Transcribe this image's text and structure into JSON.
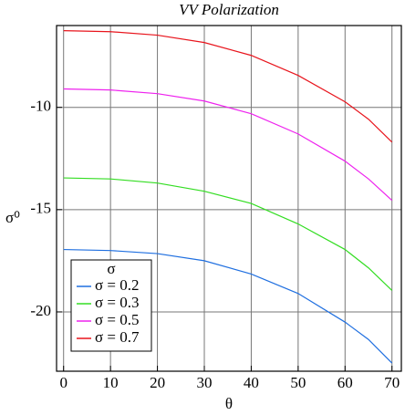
{
  "chart_data": {
    "type": "line",
    "title": "VV Polarization",
    "xlabel": "θ",
    "ylabel": "σ⁰",
    "x": [
      0,
      10,
      20,
      30,
      40,
      50,
      60,
      65,
      70
    ],
    "series": [
      {
        "name": "σ = 0.2",
        "color": "#1f6fe0",
        "values": [
          -16.95,
          -17.0,
          -17.15,
          -17.5,
          -18.15,
          -19.1,
          -20.5,
          -21.35,
          -22.5
        ]
      },
      {
        "name": "σ = 0.3",
        "color": "#33dd22",
        "values": [
          -13.45,
          -13.5,
          -13.7,
          -14.1,
          -14.7,
          -15.7,
          -16.95,
          -17.85,
          -18.95
        ]
      },
      {
        "name": "σ = 0.5",
        "color": "#ee22ee",
        "values": [
          -9.1,
          -9.15,
          -9.33,
          -9.69,
          -10.31,
          -11.3,
          -12.63,
          -13.5,
          -14.55
        ]
      },
      {
        "name": "σ = 0.7",
        "color": "#e8141c",
        "values": [
          -6.25,
          -6.3,
          -6.47,
          -6.83,
          -7.46,
          -8.44,
          -9.73,
          -10.58,
          -11.7
        ]
      }
    ],
    "legend_title": "σ",
    "legend": "lower left",
    "xlim": [
      -1.5,
      72
    ],
    "xticks": [
      0,
      10,
      20,
      30,
      40,
      50,
      60,
      70
    ],
    "ylim": [
      -22.9,
      -6
    ],
    "yticks": [
      -20,
      -15,
      -10
    ],
    "grid": true
  }
}
